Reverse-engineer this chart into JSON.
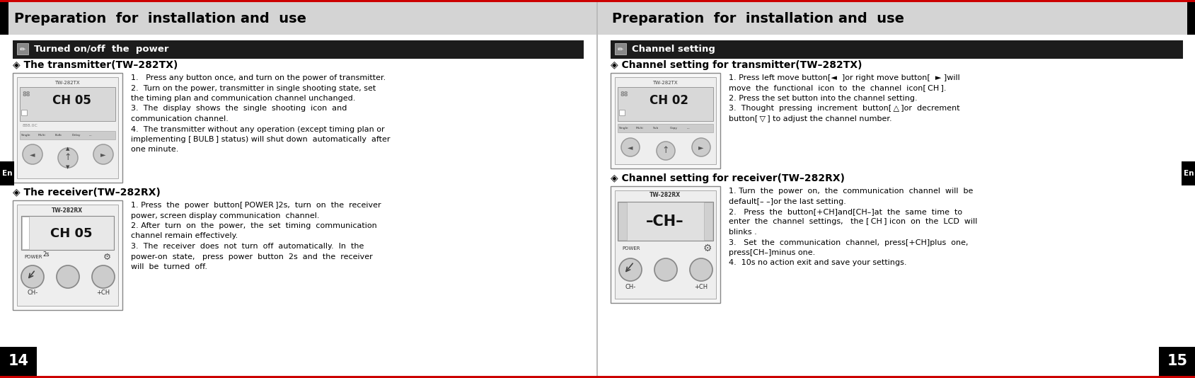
{
  "white": "#ffffff",
  "black": "#000000",
  "red_line": "#cc0000",
  "header_gray": "#d4d4d4",
  "section_dark": "#1c1c1c",
  "image_bg": "#f5f5f5",
  "image_border": "#888888",
  "left_title": "Preparation  for  installation and  use",
  "right_title": "Preparation  for  installation and  use",
  "left_section_title": "Turned on/off  the  power",
  "right_section_title": "Channel setting",
  "left_sub1": "◈ The transmitter(TW–282TX)",
  "left_sub2": "◈ The receiver(TW–282RX)",
  "right_sub1": "◈ Channel setting for transmitter(TW–282TX)",
  "right_sub2": "◈ Channel setting for receiver(TW–282RX)",
  "left_text1_lines": [
    "1.   Press any button once, and turn on the power of transmitter.",
    "2.  Turn on the power, transmitter in single shooting state, set",
    "the timing plan and communication channel unchanged.",
    "3.  The  display  shows  the  single  shooting  icon  and",
    "communication channel.",
    "4.  The transmitter without any operation (except timing plan or",
    "implementing [ BULB ] status) will shut down  automatically  after",
    "one minute."
  ],
  "left_text2_lines": [
    "1. Press  the  power  button[ POWER ]2s,  turn  on  the  receiver",
    "power, screen display communication  channel.",
    "2. After  turn  on  the  power,  the  set  timing  communication",
    "channel remain effectively.",
    "3.  The  receiver  does  not  turn  off  automatically.  In  the",
    "power-on  state,   press  power  button  2s  and  the  receiver",
    "will  be  turned  off."
  ],
  "right_text1_lines": [
    "1. Press left move button[◄  ]or right move button[  ► ]will",
    "move  the  functional  icon  to  the  channel  icon[ CH ].",
    "2. Press the set button into the channel setting.",
    "3.  Thought  pressing  increment  button[ △ ]or  decrement",
    "button[ ▽ ] to adjust the channel number."
  ],
  "right_text2_lines": [
    "1. Turn  the  power  on,  the  communication  channel  will  be",
    "default[– –]or the last setting.",
    "2.   Press  the  button[+CH]and[CH–]at  the  same  time  to",
    "enter  the  channel  settings,   the [ CH ] icon  on  the  LCD  will",
    "blinks .",
    "3.   Set  the  communication  channel,  press[+CH]plus  one,",
    "press[CH–]minus one.",
    "4.  10s no action exit and save your settings."
  ],
  "page_num_left": "14",
  "page_num_right": "15",
  "en_label": "En"
}
